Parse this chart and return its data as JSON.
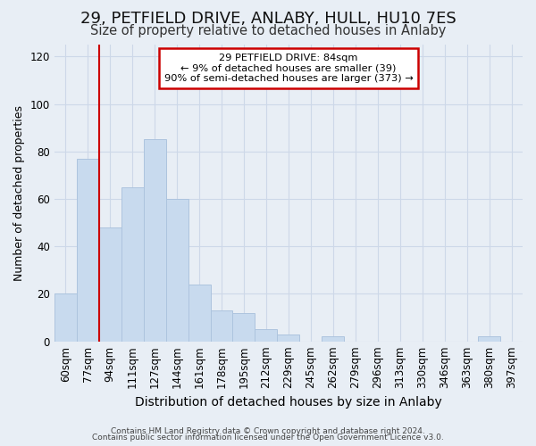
{
  "title": "29, PETFIELD DRIVE, ANLABY, HULL, HU10 7ES",
  "subtitle": "Size of property relative to detached houses in Anlaby",
  "xlabel": "Distribution of detached houses by size in Anlaby",
  "ylabel": "Number of detached properties",
  "footer_line1": "Contains HM Land Registry data © Crown copyright and database right 2024.",
  "footer_line2": "Contains public sector information licensed under the Open Government Licence v3.0.",
  "categories": [
    "60sqm",
    "77sqm",
    "94sqm",
    "111sqm",
    "127sqm",
    "144sqm",
    "161sqm",
    "178sqm",
    "195sqm",
    "212sqm",
    "229sqm",
    "245sqm",
    "262sqm",
    "279sqm",
    "296sqm",
    "313sqm",
    "330sqm",
    "346sqm",
    "363sqm",
    "380sqm",
    "397sqm"
  ],
  "values": [
    20,
    77,
    48,
    65,
    85,
    60,
    24,
    13,
    12,
    5,
    3,
    0,
    2,
    0,
    0,
    0,
    0,
    0,
    0,
    2,
    0
  ],
  "bar_color": "#c8daee",
  "bar_edge_color": "#adc4de",
  "ylim": [
    0,
    125
  ],
  "yticks": [
    0,
    20,
    40,
    60,
    80,
    100,
    120
  ],
  "red_line_x": 1.5,
  "annotation_line1": "29 PETFIELD DRIVE: 84sqm",
  "annotation_line2": "← 9% of detached houses are smaller (39)",
  "annotation_line3": "90% of semi-detached houses are larger (373) →",
  "annotation_box_color": "#ffffff",
  "annotation_border_color": "#cc0000",
  "red_line_color": "#cc0000",
  "grid_color": "#cdd8e8",
  "bg_color": "#e8eef5",
  "title_fontsize": 13,
  "subtitle_fontsize": 10.5,
  "ylabel_fontsize": 9,
  "xlabel_fontsize": 10,
  "tick_fontsize": 8.5
}
